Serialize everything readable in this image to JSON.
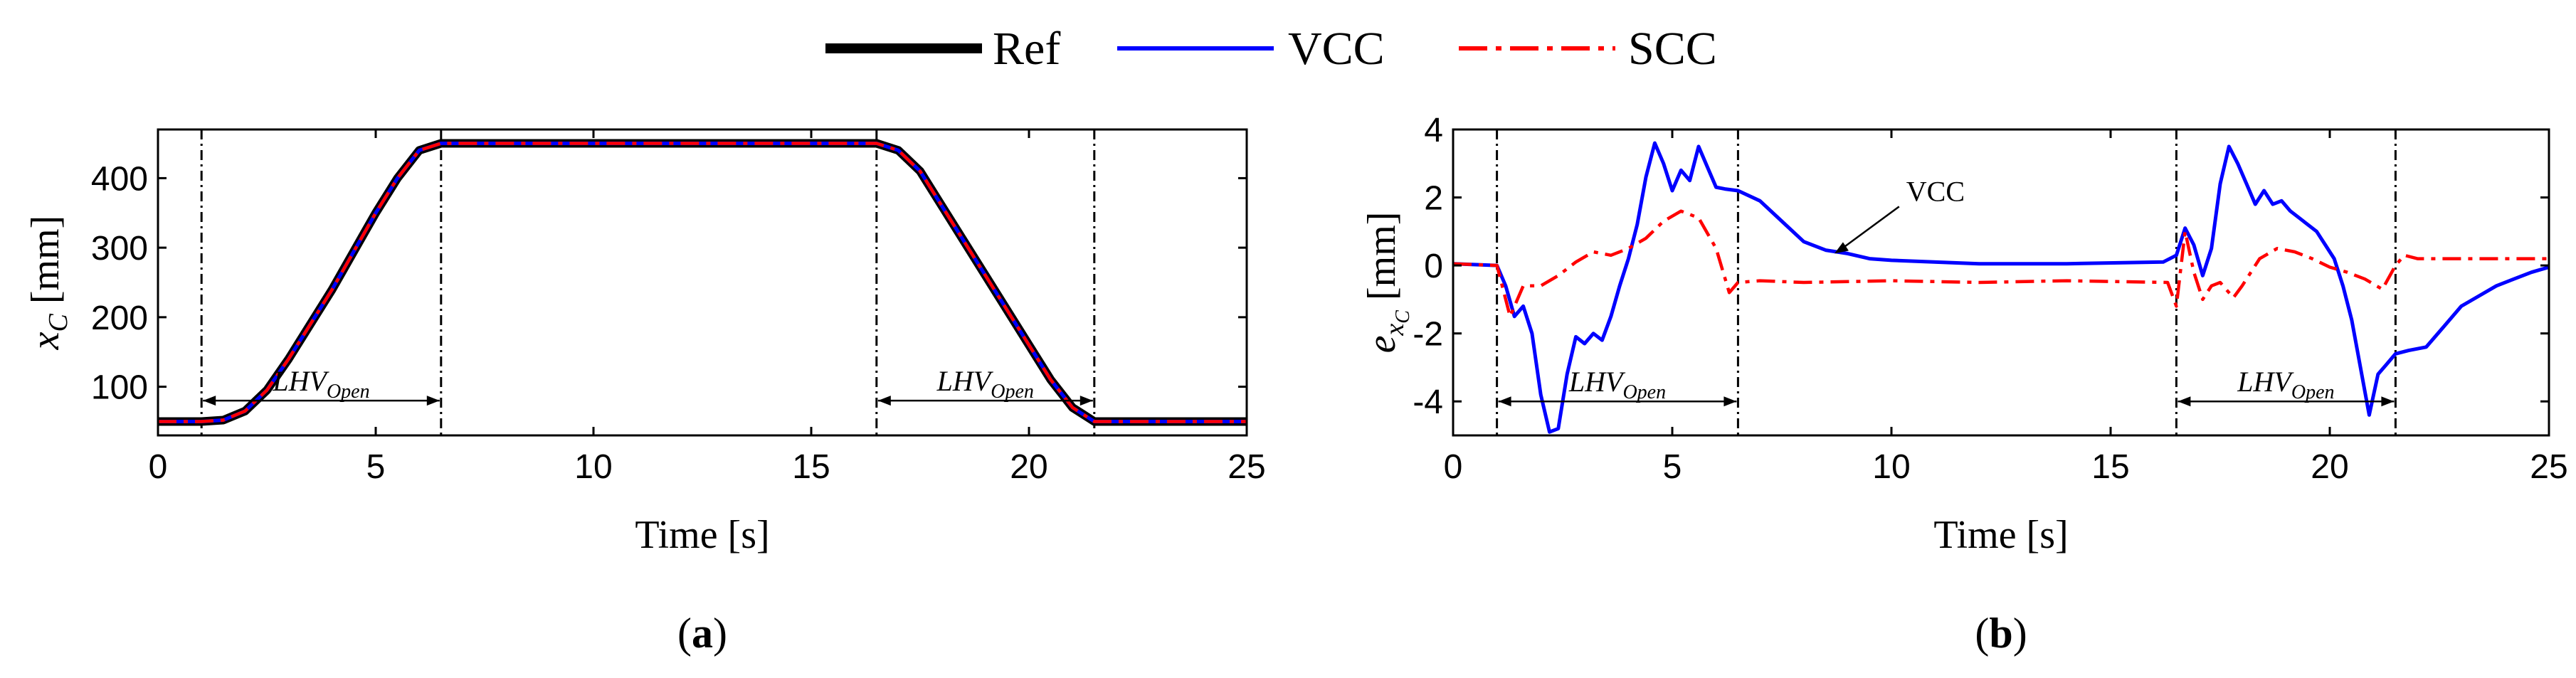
{
  "legend": {
    "items": [
      {
        "label": "Ref",
        "color": "#000000",
        "style": "solid-thick"
      },
      {
        "label": "VCC",
        "color": "#0000ff",
        "style": "solid"
      },
      {
        "label": "SCC",
        "color": "#ff0000",
        "style": "dashdot"
      }
    ]
  },
  "chart_data": [
    {
      "type": "line",
      "panel_label": "a",
      "xlabel": "Time [s]",
      "ylabel": "x_C [mm]",
      "xlim": [
        0,
        25
      ],
      "ylim": [
        30,
        470
      ],
      "xticks": [
        0,
        5,
        10,
        15,
        20,
        25
      ],
      "yticks": [
        100,
        200,
        300,
        400
      ],
      "vlines": [
        1.0,
        6.5,
        16.5,
        21.5
      ],
      "annotations": [
        {
          "text": "LHV",
          "subscript": "Open",
          "x_from": 1.0,
          "x_to": 6.5,
          "y": 80
        },
        {
          "text": "LHV",
          "subscript": "Open",
          "x_from": 16.5,
          "x_to": 21.5,
          "y": 80
        }
      ],
      "series": [
        {
          "name": "Ref",
          "color": "#000000",
          "x": [
            0,
            1,
            1.5,
            2,
            2.5,
            3,
            4,
            5,
            5.5,
            6,
            6.5,
            16.5,
            17,
            17.5,
            18,
            19,
            20,
            20.5,
            21,
            21.5,
            25
          ],
          "y": [
            50,
            50,
            52,
            65,
            95,
            140,
            240,
            350,
            400,
            440,
            450,
            450,
            440,
            410,
            360,
            260,
            160,
            110,
            70,
            50,
            50
          ]
        },
        {
          "name": "VCC",
          "color": "#0000ff",
          "x": [
            0,
            1,
            1.5,
            2,
            2.5,
            3,
            4,
            5,
            5.5,
            6,
            6.5,
            16.5,
            17,
            17.5,
            18,
            19,
            20,
            20.5,
            21,
            21.5,
            25
          ],
          "y": [
            50,
            50,
            52,
            65,
            95,
            140,
            240,
            350,
            400,
            440,
            450,
            450,
            440,
            410,
            360,
            260,
            160,
            110,
            70,
            50,
            50
          ]
        },
        {
          "name": "SCC",
          "color": "#ff0000",
          "x": [
            0,
            1,
            1.5,
            2,
            2.5,
            3,
            4,
            5,
            5.5,
            6,
            6.5,
            16.5,
            17,
            17.5,
            18,
            19,
            20,
            20.5,
            21,
            21.5,
            25
          ],
          "y": [
            50,
            50,
            52,
            65,
            95,
            140,
            240,
            350,
            400,
            440,
            450,
            450,
            440,
            410,
            360,
            260,
            160,
            110,
            70,
            50,
            50
          ]
        }
      ]
    },
    {
      "type": "line",
      "panel_label": "b",
      "xlabel": "Time [s]",
      "ylabel": "e_xC [mm]",
      "xlim": [
        0,
        25
      ],
      "ylim": [
        -5,
        4
      ],
      "xticks": [
        0,
        5,
        10,
        15,
        20,
        25
      ],
      "yticks": [
        -4,
        -2,
        0,
        2,
        4
      ],
      "vlines": [
        1.0,
        6.5,
        16.5,
        21.5
      ],
      "annotations": [
        {
          "text": "LHV",
          "subscript": "Open",
          "x_from": 1.0,
          "x_to": 6.5,
          "y": -4.0
        },
        {
          "text": "LHV",
          "subscript": "Open",
          "x_from": 16.5,
          "x_to": 21.5,
          "y": -4.0
        },
        {
          "text": "VCC",
          "x": 10.5,
          "y": 1.9,
          "arrow_to_x": 8.7,
          "arrow_to_y": 0.35
        }
      ],
      "series": [
        {
          "name": "VCC",
          "color": "#0000ff",
          "x": [
            0,
            1.0,
            1.2,
            1.4,
            1.6,
            1.8,
            2.0,
            2.2,
            2.4,
            2.6,
            2.8,
            3.0,
            3.2,
            3.4,
            3.6,
            3.8,
            4.0,
            4.2,
            4.4,
            4.6,
            4.8,
            5.0,
            5.2,
            5.4,
            5.6,
            5.8,
            6.0,
            6.2,
            6.5,
            7.0,
            7.5,
            8.0,
            8.5,
            9.0,
            9.5,
            10,
            12,
            14,
            16.2,
            16.5,
            16.7,
            16.9,
            17.1,
            17.3,
            17.5,
            17.7,
            17.9,
            18.1,
            18.3,
            18.5,
            18.7,
            18.9,
            19.1,
            19.3,
            19.5,
            19.7,
            19.9,
            20.1,
            20.3,
            20.5,
            20.7,
            20.9,
            21.1,
            21.3,
            21.5,
            21.8,
            22.2,
            22.6,
            23.0,
            23.4,
            23.8,
            24.2,
            24.6,
            25.0
          ],
          "y": [
            0.05,
            0.0,
            -0.6,
            -1.5,
            -1.2,
            -2.0,
            -3.8,
            -4.9,
            -4.8,
            -3.2,
            -2.1,
            -2.3,
            -2.0,
            -2.2,
            -1.5,
            -0.6,
            0.2,
            1.2,
            2.6,
            3.6,
            3.0,
            2.2,
            2.8,
            2.5,
            3.5,
            2.9,
            2.3,
            2.25,
            2.2,
            1.9,
            1.3,
            0.7,
            0.45,
            0.35,
            0.2,
            0.15,
            0.05,
            0.05,
            0.1,
            0.3,
            1.1,
            0.6,
            -0.3,
            0.5,
            2.4,
            3.5,
            3.0,
            2.4,
            1.8,
            2.2,
            1.8,
            1.9,
            1.6,
            1.4,
            1.2,
            1.0,
            0.6,
            0.2,
            -0.6,
            -1.6,
            -3.0,
            -4.4,
            -3.2,
            -2.9,
            -2.6,
            -2.5,
            -2.4,
            -1.8,
            -1.2,
            -0.9,
            -0.6,
            -0.4,
            -0.2,
            -0.05
          ]
        },
        {
          "name": "SCC",
          "color": "#ff0000",
          "x": [
            0,
            1.0,
            1.3,
            1.6,
            2.0,
            2.4,
            2.8,
            3.2,
            3.6,
            4.0,
            4.4,
            4.8,
            5.2,
            5.6,
            6.0,
            6.3,
            6.5,
            7.0,
            8.0,
            10,
            12,
            14,
            16.3,
            16.5,
            16.7,
            16.9,
            17.1,
            17.3,
            17.5,
            17.8,
            18.0,
            18.4,
            18.8,
            19.2,
            19.6,
            20.0,
            20.4,
            20.8,
            21.2,
            21.5,
            21.7,
            22.0,
            23,
            24,
            25
          ],
          "y": [
            0.05,
            0.0,
            -1.5,
            -0.6,
            -0.6,
            -0.3,
            0.1,
            0.4,
            0.3,
            0.5,
            0.8,
            1.3,
            1.6,
            1.4,
            0.5,
            -0.8,
            -0.5,
            -0.45,
            -0.5,
            -0.45,
            -0.5,
            -0.45,
            -0.5,
            -1.2,
            1.0,
            -0.2,
            -1.0,
            -0.6,
            -0.5,
            -0.95,
            -0.6,
            0.2,
            0.5,
            0.4,
            0.2,
            -0.05,
            -0.2,
            -0.4,
            -0.7,
            0.0,
            0.3,
            0.2,
            0.2,
            0.2,
            0.2
          ]
        }
      ]
    }
  ]
}
